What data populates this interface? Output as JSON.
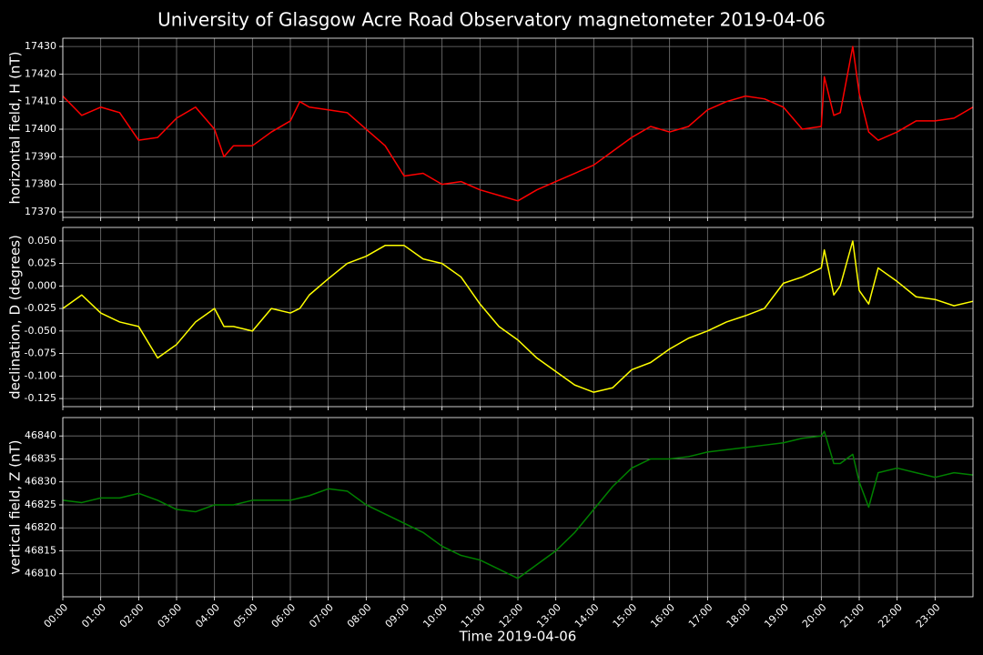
{
  "title": "University of Glasgow Acre Road Observatory magnetometer 2019-04-06",
  "chart_data": [
    {
      "type": "line",
      "ylabel": "horizontal field, H (nT)",
      "x": [
        0,
        0.5,
        1,
        1.5,
        2,
        2.5,
        3,
        3.5,
        4,
        4.25,
        4.5,
        5,
        5.5,
        6,
        6.25,
        6.5,
        7,
        7.5,
        8,
        8.5,
        9,
        9.5,
        10,
        10.5,
        11,
        11.5,
        12,
        12.5,
        13,
        13.5,
        14,
        14.5,
        15,
        15.5,
        16,
        16.5,
        17,
        17.5,
        18,
        18.5,
        19,
        19.5,
        20,
        20.08,
        20.33,
        20.5,
        20.83,
        21,
        21.25,
        21.5,
        22,
        22.5,
        23,
        23.5,
        24
      ],
      "series": [
        {
          "name": "H",
          "color": "#ff0000",
          "values": [
            17412,
            17405,
            17408,
            17406,
            17396,
            17397,
            17404,
            17408,
            17400,
            17390,
            17394,
            17394,
            17399,
            17403,
            17410,
            17408,
            17407,
            17406,
            17400,
            17394,
            17383,
            17384,
            17380,
            17381,
            17378,
            17376,
            17374,
            17378,
            17381,
            17384,
            17387,
            17392,
            17397,
            17401,
            17399,
            17401,
            17407,
            17410,
            17412,
            17411,
            17408,
            17400,
            17401,
            17419,
            17405,
            17406,
            17430,
            17413,
            17399,
            17396,
            17399,
            17403,
            17403,
            17404,
            17408
          ]
        }
      ],
      "xlim": [
        0,
        24
      ],
      "ylim": [
        17368,
        17433
      ],
      "yticks": [
        17370,
        17380,
        17390,
        17400,
        17410,
        17420,
        17430
      ],
      "grid": true
    },
    {
      "type": "line",
      "ylabel": "declination, D (degrees)",
      "x": [
        0,
        0.5,
        1,
        1.5,
        2,
        2.5,
        3,
        3.5,
        4,
        4.25,
        4.5,
        5,
        5.5,
        6,
        6.25,
        6.5,
        7,
        7.5,
        8,
        8.5,
        9,
        9.5,
        10,
        10.5,
        11,
        11.5,
        12,
        12.5,
        13,
        13.5,
        14,
        14.5,
        15,
        15.5,
        16,
        16.5,
        17,
        17.5,
        18,
        18.5,
        19,
        19.5,
        20,
        20.08,
        20.33,
        20.5,
        20.83,
        21,
        21.25,
        21.5,
        22,
        22.5,
        23,
        23.5,
        24
      ],
      "series": [
        {
          "name": "D",
          "color": "#ffff00",
          "values": [
            -0.025,
            -0.01,
            -0.03,
            -0.04,
            -0.045,
            -0.08,
            -0.065,
            -0.04,
            -0.025,
            -0.045,
            -0.045,
            -0.05,
            -0.025,
            -0.03,
            -0.025,
            -0.01,
            0.008,
            0.025,
            0.033,
            0.045,
            0.045,
            0.03,
            0.025,
            0.01,
            -0.02,
            -0.045,
            -0.06,
            -0.08,
            -0.095,
            -0.11,
            -0.118,
            -0.113,
            -0.093,
            -0.085,
            -0.07,
            -0.058,
            -0.05,
            -0.04,
            -0.033,
            -0.025,
            0.003,
            0.01,
            0.02,
            0.04,
            -0.01,
            0,
            0.05,
            -0.005,
            -0.02,
            0.02,
            0.005,
            -0.012,
            -0.015,
            -0.022,
            -0.017
          ]
        }
      ],
      "xlim": [
        0,
        24
      ],
      "ylim": [
        -0.134,
        0.065
      ],
      "yticks": [
        {
          "value": -0.125,
          "label": "-0.125"
        },
        {
          "value": -0.1,
          "label": "-0.100"
        },
        {
          "value": -0.075,
          "label": "-0.075"
        },
        {
          "value": -0.05,
          "label": "-0.050"
        },
        {
          "value": -0.025,
          "label": "-0.025"
        },
        {
          "value": 0,
          "label": "0.000"
        },
        {
          "value": 0.025,
          "label": "0.025"
        },
        {
          "value": 0.05,
          "label": "0.050"
        }
      ],
      "grid": true
    },
    {
      "type": "line",
      "ylabel": "vertical field, Z (nT)",
      "xlabel": "Time 2019-04-06",
      "x": [
        0,
        0.5,
        1,
        1.5,
        2,
        2.5,
        3,
        3.5,
        4,
        4.25,
        4.5,
        5,
        5.5,
        6,
        6.25,
        6.5,
        7,
        7.5,
        8,
        8.5,
        9,
        9.5,
        10,
        10.5,
        11,
        11.5,
        12,
        12.5,
        13,
        13.5,
        14,
        14.5,
        15,
        15.5,
        16,
        16.5,
        17,
        17.5,
        18,
        18.5,
        19,
        19.5,
        20,
        20.08,
        20.33,
        20.5,
        20.83,
        21,
        21.25,
        21.5,
        22,
        22.5,
        23,
        23.5,
        24
      ],
      "series": [
        {
          "name": "Z",
          "color": "#008000",
          "values": [
            46826,
            46825.5,
            46826.5,
            46826.5,
            46827.5,
            46826,
            46824,
            46823.5,
            46825,
            46825,
            46825,
            46826,
            46826,
            46826,
            46826.5,
            46827,
            46828.5,
            46828,
            46825,
            46823,
            46821,
            46819,
            46816,
            46814,
            46813,
            46811,
            46809,
            46812,
            46815,
            46819,
            46824,
            46829,
            46833,
            46835,
            46835,
            46835.5,
            46836.5,
            46837,
            46837.5,
            46838,
            46838.5,
            46839.5,
            46840,
            46841,
            46834,
            46834,
            46836,
            46830,
            46824.5,
            46832,
            46833,
            46832,
            46831,
            46832,
            46831.5
          ]
        }
      ],
      "xlim": [
        0,
        24
      ],
      "ylim": [
        46805,
        46844
      ],
      "yticks": [
        46810,
        46815,
        46820,
        46825,
        46830,
        46835,
        46840
      ],
      "xticks": [
        {
          "value": 0,
          "label": "00:00"
        },
        {
          "value": 1,
          "label": "01:00"
        },
        {
          "value": 2,
          "label": "02:00"
        },
        {
          "value": 3,
          "label": "03:00"
        },
        {
          "value": 4,
          "label": "04:00"
        },
        {
          "value": 5,
          "label": "05:00"
        },
        {
          "value": 6,
          "label": "06:00"
        },
        {
          "value": 7,
          "label": "07:00"
        },
        {
          "value": 8,
          "label": "08:00"
        },
        {
          "value": 9,
          "label": "09:00"
        },
        {
          "value": 10,
          "label": "10:00"
        },
        {
          "value": 11,
          "label": "11:00"
        },
        {
          "value": 12,
          "label": "12:00"
        },
        {
          "value": 13,
          "label": "13:00"
        },
        {
          "value": 14,
          "label": "14:00"
        },
        {
          "value": 15,
          "label": "15:00"
        },
        {
          "value": 16,
          "label": "16:00"
        },
        {
          "value": 17,
          "label": "17:00"
        },
        {
          "value": 18,
          "label": "18:00"
        },
        {
          "value": 19,
          "label": "19:00"
        },
        {
          "value": 20,
          "label": "20:00"
        },
        {
          "value": 21,
          "label": "21:00"
        },
        {
          "value": 22,
          "label": "22:00"
        },
        {
          "value": 23,
          "label": "23:00"
        }
      ],
      "grid": true
    }
  ]
}
